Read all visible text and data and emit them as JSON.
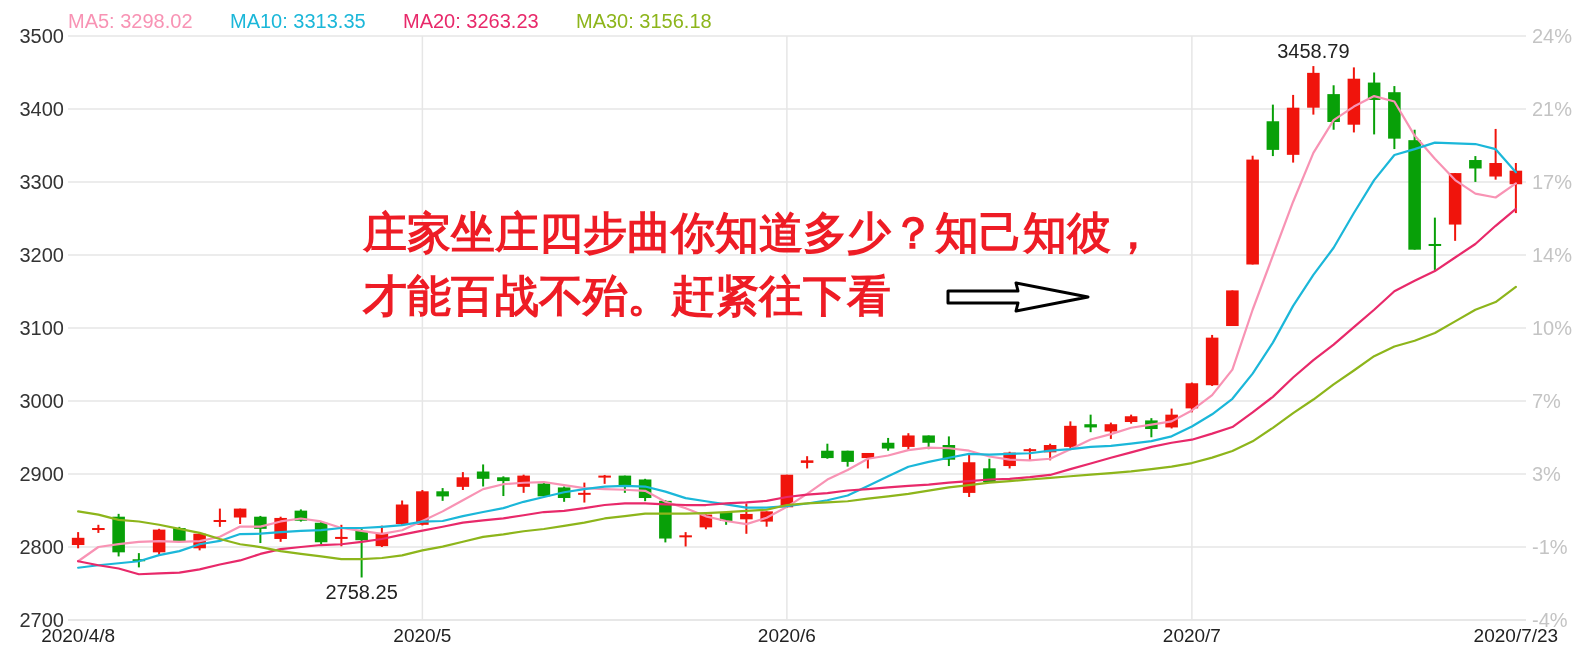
{
  "chart_data": {
    "type": "candlestick",
    "categories": [
      "2020/4/8",
      null,
      null,
      null,
      null,
      null,
      null,
      null,
      null,
      null,
      null,
      null,
      null,
      null,
      null,
      null,
      null,
      "2020/5",
      null,
      null,
      null,
      null,
      null,
      null,
      null,
      null,
      null,
      null,
      null,
      null,
      null,
      null,
      null,
      null,
      null,
      "2020/6",
      null,
      null,
      null,
      null,
      null,
      null,
      null,
      null,
      null,
      null,
      null,
      null,
      null,
      null,
      null,
      null,
      null,
      null,
      null,
      "2020/7",
      null,
      null,
      null,
      null,
      null,
      null,
      null,
      null,
      null,
      null,
      null,
      null,
      null,
      null,
      null,
      "2020/7/23"
    ],
    "ohlc": [
      [
        2802.7,
        2820.4,
        2798.2,
        2812.6
      ],
      [
        2824.9,
        2830.4,
        2819.3,
        2826
      ],
      [
        2841.5,
        2845.4,
        2787.1,
        2792.7
      ],
      [
        2783.2,
        2791.6,
        2772.1,
        2780.5
      ],
      [
        2792.7,
        2824.9,
        2788.8,
        2823.8
      ],
      [
        2826,
        2827.6,
        2808,
        2808.2
      ],
      [
        2798.2,
        2820.4,
        2795.4,
        2818.2
      ],
      [
        2834.8,
        2852.6,
        2827.6,
        2837
      ],
      [
        2840.4,
        2852.6,
        2831.5,
        2852.6
      ],
      [
        2841.5,
        2842.6,
        2805.4,
        2824.9
      ],
      [
        2811,
        2841.5,
        2807.1,
        2839.8
      ],
      [
        2849.8,
        2851.5,
        2834.8,
        2836
      ],
      [
        2833.2,
        2834.8,
        2803.8,
        2806.5
      ],
      [
        2812,
        2830.4,
        2801,
        2813.8
      ],
      [
        2822,
        2824.9,
        2758.25,
        2809.3
      ],
      [
        2801.2,
        2829.2,
        2800,
        2819.3
      ],
      [
        2831.5,
        2863.7,
        2829.2,
        2858.2
      ],
      [
        2830.4,
        2878.1,
        2829.5,
        2876.3
      ],
      [
        2876.3,
        2880.7,
        2863.2,
        2869.3
      ],
      [
        2882.4,
        2902.6,
        2878.1,
        2895.5
      ],
      [
        2903.4,
        2913.1,
        2882.9,
        2893.4
      ],
      [
        2895.5,
        2896.8,
        2869.8,
        2890.3
      ],
      [
        2882.4,
        2899.1,
        2874.2,
        2897.8
      ],
      [
        2886.9,
        2888.2,
        2869.4,
        2869.4
      ],
      [
        2881.6,
        2882.9,
        2861.9,
        2867.1
      ],
      [
        2872.4,
        2888.2,
        2860.9,
        2874.2
      ],
      [
        2896,
        2898.7,
        2886.5,
        2897.8
      ],
      [
        2897.8,
        2897.8,
        2874.2,
        2883.8
      ],
      [
        2892.5,
        2893.4,
        2862.8,
        2867.1
      ],
      [
        2863.2,
        2864.1,
        2806.3,
        2811.6
      ],
      [
        2814.7,
        2820.4,
        2800.7,
        2816
      ],
      [
        2826.9,
        2844.4,
        2824.3,
        2844.4
      ],
      [
        2847.9,
        2847.9,
        2830.4,
        2835.7
      ],
      [
        2837.9,
        2859.7,
        2818.1,
        2845.3
      ],
      [
        2834.8,
        2848.8,
        2827.8,
        2848.8
      ],
      [
        2854.4,
        2899,
        2853.5,
        2899
      ],
      [
        2915.2,
        2924.4,
        2907.6,
        2918.7
      ],
      [
        2931.9,
        2941.5,
        2920.9,
        2921.8
      ],
      [
        2931.9,
        2931.9,
        2910.1,
        2916.6
      ],
      [
        2921.8,
        2928.8,
        2907.6,
        2928.8
      ],
      [
        2942.8,
        2949.4,
        2931.9,
        2934.9
      ],
      [
        2937.1,
        2955.9,
        2932.7,
        2952.8
      ],
      [
        2952.8,
        2952.8,
        2934,
        2942.8
      ],
      [
        2939.7,
        2951.5,
        2910.9,
        2919.6
      ],
      [
        2874.1,
        2928.4,
        2868.5,
        2916.1
      ],
      [
        2907.8,
        2920.9,
        2888.2,
        2889
      ],
      [
        2910.9,
        2930.5,
        2907.6,
        2929.3
      ],
      [
        2931.9,
        2935.3,
        2918.7,
        2934
      ],
      [
        2929.7,
        2941.5,
        2918.7,
        2939.7
      ],
      [
        2937.1,
        2972.1,
        2932.7,
        2966
      ],
      [
        2968.2,
        2981.3,
        2957.3,
        2963.8
      ],
      [
        2958.2,
        2970.4,
        2948.1,
        2968.2
      ],
      [
        2971.2,
        2981.3,
        2969,
        2979.1
      ],
      [
        2973.4,
        2976.5,
        2950.3,
        2961.6
      ],
      [
        2963.8,
        2989.6,
        2962.4,
        2981.3
      ],
      [
        2989.9,
        3025.3,
        2984.5,
        3024.3
      ],
      [
        3021.6,
        3090.5,
        3020.6,
        3086.8
      ],
      [
        3102.7,
        3151.5,
        3102.7,
        3151.5
      ],
      [
        3187,
        3336,
        3187,
        3330.7
      ],
      [
        3383.2,
        3406,
        3335.5,
        3344
      ],
      [
        3337.2,
        3419.3,
        3326.6,
        3401.8
      ],
      [
        3401.8,
        3458.79,
        3392.3,
        3449.5
      ],
      [
        3420.4,
        3432.5,
        3371.6,
        3382.2
      ],
      [
        3378.5,
        3457,
        3367.9,
        3441.5
      ],
      [
        3436.2,
        3450,
        3365.2,
        3412.4
      ],
      [
        3423,
        3431.4,
        3345.1,
        3359.4
      ],
      [
        3357.3,
        3371.6,
        3207.3,
        3207.3
      ],
      [
        3215.1,
        3251.2,
        3179.6,
        3212.5
      ],
      [
        3241.7,
        3312.2,
        3219.4,
        3312.2
      ],
      [
        3330.1,
        3335.5,
        3300.1,
        3318.5
      ],
      [
        3307.5,
        3372.7,
        3303.2,
        3326
      ],
      [
        3296.9,
        3326,
        3257.4,
        3315.5
      ]
    ],
    "colors": [
      "#f0140c",
      "#f0140c",
      "#08a008",
      "#08a008",
      "#f0140c",
      "#08a008",
      "#f0140c",
      "#f0140c",
      "#f0140c",
      "#08a008",
      "#f0140c",
      "#08a008",
      "#08a008",
      "#f0140c",
      "#08a008",
      "#f0140c",
      "#f0140c",
      "#f0140c",
      "#08a008",
      "#f0140c",
      "#08a008",
      "#08a008",
      "#f0140c",
      "#08a008",
      "#08a008",
      "#f0140c",
      "#f0140c",
      "#08a008",
      "#08a008",
      "#08a008",
      "#f0140c",
      "#f0140c",
      "#08a008",
      "#f0140c",
      "#f0140c",
      "#f0140c",
      "#f0140c",
      "#08a008",
      "#08a008",
      "#f0140c",
      "#08a008",
      "#f0140c",
      "#08a008",
      "#08a008",
      "#f0140c",
      "#08a008",
      "#f0140c",
      "#f0140c",
      "#f0140c",
      "#f0140c",
      "#08a008",
      "#f0140c",
      "#f0140c",
      "#08a008",
      "#f0140c",
      "#f0140c",
      "#f0140c",
      "#f0140c",
      "#f0140c",
      "#08a008",
      "#f0140c",
      "#f0140c",
      "#08a008",
      "#f0140c",
      "#08a008",
      "#08a008",
      "#08a008",
      "#08a008",
      "#f0140c",
      "#08a008",
      "#f0140c",
      "#f0140c"
    ],
    "series": [
      {
        "type": "line",
        "name": "MA5: 3298.02",
        "color": "#f893b4",
        "values": [
          2780.5,
          2800,
          2804,
          2807,
          2808,
          2807,
          2808,
          2814,
          2828,
          2828,
          2835,
          2839,
          2835,
          2826,
          2822,
          2818,
          2823,
          2835.6,
          2848.8,
          2864,
          2879.3,
          2886,
          2888,
          2889,
          2884.7,
          2880.7,
          2879.3,
          2878.4,
          2877,
          2861.9,
          2853.2,
          2842,
          2835.6,
          2831.3,
          2840,
          2855,
          2872.8,
          2892.4,
          2905.6,
          2920.9,
          2925.3,
          2932.7,
          2936.2,
          2935.3,
          2931.9,
          2924,
          2919.6,
          2918.7,
          2920.9,
          2934,
          2947.2,
          2954.6,
          2963.4,
          2967.7,
          2972.1,
          2987,
          3008,
          3043,
          3125,
          3199,
          3273,
          3339.8,
          3384.8,
          3403.3,
          3417.7,
          3410.2,
          3363.6,
          3331.8,
          3302.6,
          3284,
          3278.8,
          3298.02
        ]
      },
      {
        "type": "line",
        "name": "MA10: 3313.35",
        "color": "#1bb7d9",
        "values": [
          2771.6,
          2775,
          2777.7,
          2780.5,
          2788.8,
          2794.4,
          2803.8,
          2808.3,
          2817.7,
          2818.2,
          2820.4,
          2822.1,
          2823.2,
          2826,
          2826,
          2827.7,
          2830,
          2834.7,
          2835.6,
          2842.2,
          2847.9,
          2853.2,
          2861.9,
          2868.5,
          2875,
          2879.3,
          2882.8,
          2883.7,
          2882.8,
          2875.8,
          2867,
          2862.7,
          2858.3,
          2853.9,
          2853.9,
          2856,
          2859.6,
          2864,
          2870.6,
          2883.7,
          2896.8,
          2910,
          2916.6,
          2922.2,
          2927.5,
          2926.6,
          2927.5,
          2928.4,
          2931.9,
          2934,
          2937.1,
          2938.5,
          2941.5,
          2945,
          2951.6,
          2965,
          2981.8,
          3003,
          3037.5,
          3080,
          3130.3,
          3172.7,
          3209.9,
          3257.5,
          3302.6,
          3337,
          3345,
          3354,
          3353,
          3352,
          3345,
          3313.35
        ]
      },
      {
        "type": "line",
        "name": "MA20: 3263.23",
        "color": "#e8296a",
        "values": [
          2780.5,
          2775,
          2770.5,
          2762.7,
          2763.8,
          2764.9,
          2769.4,
          2776,
          2781.6,
          2790.5,
          2797.1,
          2800,
          2802.7,
          2803.8,
          2807.1,
          2811,
          2817,
          2822.5,
          2827.7,
          2833.4,
          2836.5,
          2839.1,
          2843.5,
          2847.9,
          2849.6,
          2853.2,
          2857.5,
          2859.7,
          2859.7,
          2858.3,
          2857.5,
          2857.5,
          2859.7,
          2861,
          2863.2,
          2868.5,
          2871.7,
          2873.9,
          2877.4,
          2879.4,
          2881.6,
          2883.8,
          2885.5,
          2888.2,
          2890.3,
          2892.5,
          2893.4,
          2895.6,
          2898.7,
          2906.6,
          2914.4,
          2922.3,
          2929.7,
          2937.1,
          2942.8,
          2947,
          2955.3,
          2964.3,
          2984.5,
          3005.7,
          3032.2,
          3056.1,
          3077.3,
          3101.1,
          3125,
          3150.4,
          3164.7,
          3178,
          3196.6,
          3215.1,
          3240,
          3263.23
        ]
      },
      {
        "type": "line",
        "name": "MA30: 3156.18",
        "color": "#8db51b",
        "values": [
          2848.8,
          2844.3,
          2837.1,
          2834.9,
          2830.5,
          2824.9,
          2819.4,
          2811,
          2803.8,
          2799.9,
          2794.4,
          2790.5,
          2787.2,
          2783.3,
          2783.3,
          2784.9,
          2788.6,
          2795.4,
          2800.6,
          2807.2,
          2813.8,
          2817.2,
          2821.6,
          2824.7,
          2829,
          2833.4,
          2839.1,
          2842.2,
          2845.7,
          2845.7,
          2845.7,
          2846.5,
          2847.9,
          2849.6,
          2851,
          2857.5,
          2859.7,
          2861,
          2862.7,
          2866.2,
          2869.3,
          2872.8,
          2877.2,
          2881.6,
          2884.7,
          2888.2,
          2890.3,
          2892.5,
          2894.7,
          2896.9,
          2899.1,
          2901.3,
          2903.5,
          2906.6,
          2910.1,
          2915,
          2922.4,
          2931.5,
          2944.8,
          2963.3,
          2983.5,
          3002,
          3022.7,
          3041.8,
          3061.4,
          3074.7,
          3082.6,
          3093.2,
          3109.1,
          3125,
          3135.6,
          3156.18
        ]
      }
    ],
    "ylim": [
      2700,
      3500
    ],
    "yticks": [
      2700,
      2800,
      2900,
      3000,
      3100,
      3200,
      3300,
      3400,
      3500
    ],
    "y2lim": [
      -4.09,
      24.33
    ],
    "y2ticks": [
      {
        "value": -4.09,
        "label": "-4%"
      },
      {
        "value": -0.53,
        "label": "-1%"
      },
      {
        "value": 3.02,
        "label": "3%"
      },
      {
        "value": 6.57,
        "label": "7%"
      },
      {
        "value": 10.12,
        "label": "10%"
      },
      {
        "value": 13.68,
        "label": "14%"
      },
      {
        "value": 17.23,
        "label": "17%"
      },
      {
        "value": 20.78,
        "label": "21%"
      },
      {
        "value": 24.33,
        "label": "24%"
      }
    ],
    "annotations": [
      "庄家坐庄四步曲你知道多少？知己知彼，",
      "才能百战不殆。赶紧往下看",
      {
        "text": "3458.79",
        "y": 3458.79
      },
      {
        "text": "2758.25",
        "y": 2758.25
      }
    ],
    "grid": true,
    "legend": "top left"
  }
}
